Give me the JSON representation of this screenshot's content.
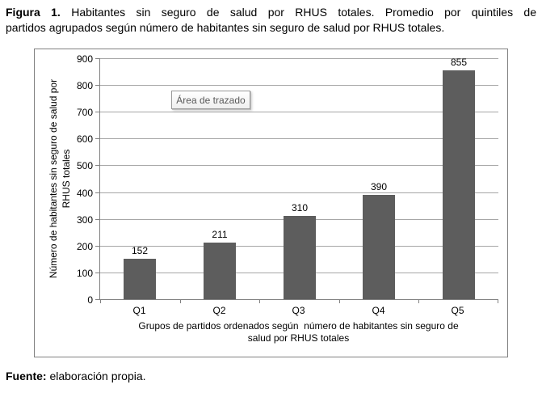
{
  "caption": {
    "label": "Figura 1.",
    "line1_rest": "Habitantes sin seguro de salud por RHUS totales. Promedio por quintiles de",
    "line2": "partidos agrupados según número de habitantes sin seguro de salud por RHUS totales."
  },
  "chart_data": {
    "type": "bar",
    "categories": [
      "Q1",
      "Q2",
      "Q3",
      "Q4",
      "Q5"
    ],
    "values": [
      152,
      211,
      310,
      390,
      855
    ],
    "title": "",
    "xlabel": "Grupos de partidos ordenados según  número de habitantes sin seguro de\nsalud por RHUS totales",
    "ylabel": "Número de habitantes sin seguro de salud por\nRHUS totales",
    "ylim": [
      0,
      900
    ],
    "ytick_interval": 100,
    "grid": true,
    "legend": "none",
    "data_labels_shown": true
  },
  "tooltip": {
    "text": "Área de trazado"
  },
  "source": {
    "label": "Fuente:",
    "text": "elaboración propia."
  },
  "colors": {
    "bar": "#5d5d5d",
    "gridline": "#a6a6a6",
    "axis": "#808080",
    "frame_border": "#808080",
    "tooltip_text": "#595959",
    "text": "#000000"
  }
}
